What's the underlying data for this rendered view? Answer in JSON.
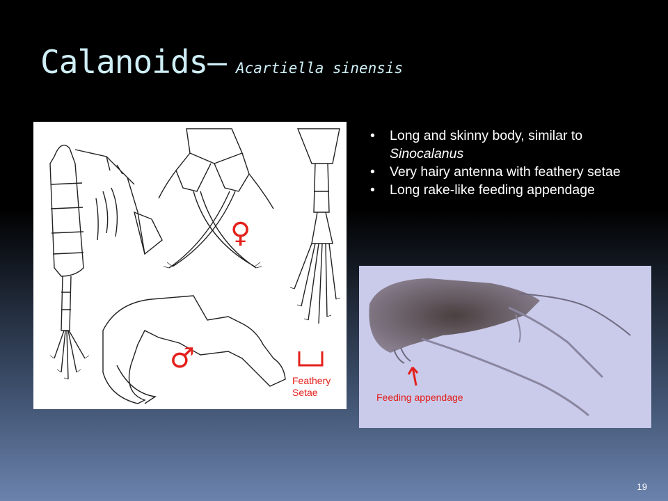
{
  "slide": {
    "title_main": "Calanoids–",
    "title_species": "Acartiella sinensis",
    "bullets": [
      {
        "text": "Long and skinny body, similar to",
        "em": "Sinocalanus"
      },
      {
        "text": "Very hairy antenna with feathery setae",
        "em": ""
      },
      {
        "text": "Long rake-like feeding appendage",
        "em": ""
      }
    ],
    "page_number": "19"
  },
  "drawing": {
    "female_symbol": "♀",
    "male_symbol": "♂",
    "setae_label_line1": "Feathery",
    "setae_label_line2": "Setae"
  },
  "photo": {
    "feeding_label": "Feeding appendage"
  },
  "colors": {
    "title": "#cfeff7",
    "annotation": "#e3201b",
    "background_top": "#000000",
    "background_bottom": "#6b83ad"
  }
}
